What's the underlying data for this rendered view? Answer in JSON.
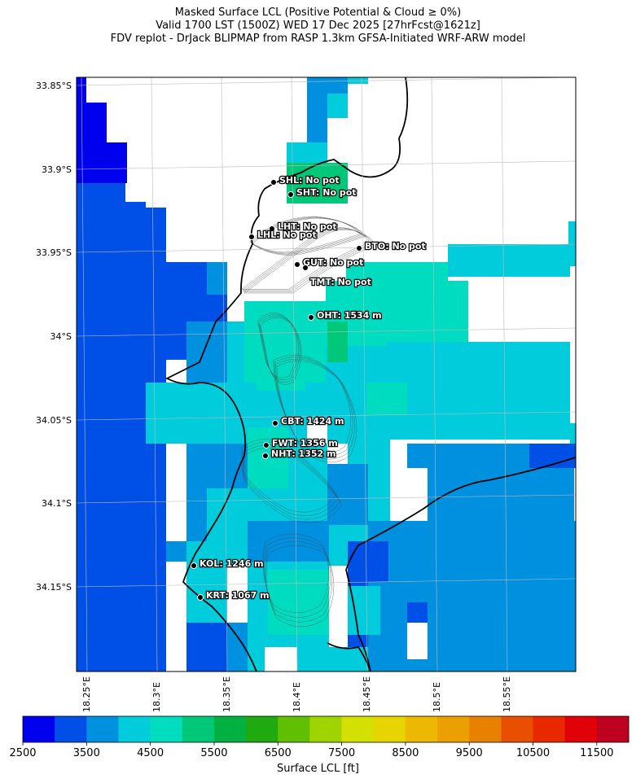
{
  "title": {
    "line1": "Masked Surface LCL (Positive Potential & Cloud ≥ 0%)",
    "line2": "Valid 1700 LST (1500Z) WED 17 Dec 2025 [27hrFcst@1621z]",
    "line3": "FDV replot - DrJack BLIPMAP from RASP 1.3km GFSA-Initiated WRF-ARW model"
  },
  "map": {
    "lat_labels": [
      "33.85°S",
      "33.9°S",
      "33.95°S",
      "34°S",
      "34.05°S",
      "34.1°S",
      "34.15°S"
    ],
    "lon_labels": [
      "18.25°E",
      "18.3°E",
      "18.35°E",
      "18.4°E",
      "18.45°E",
      "18.5°E",
      "18.55°E"
    ],
    "stations": [
      {
        "id": "SHL",
        "label": "SHL: No pot"
      },
      {
        "id": "SHT",
        "label": "SHT: No pot"
      },
      {
        "id": "LHT",
        "label": "LHT: No pot"
      },
      {
        "id": "LHL",
        "label": "LHL: No pot"
      },
      {
        "id": "BTO",
        "label": "BTO: No pot"
      },
      {
        "id": "GUT",
        "label": "GUT: No pot"
      },
      {
        "id": "TMT",
        "label": "TMT: No pot"
      },
      {
        "id": "OHT",
        "label": "OHT: 1534 m"
      },
      {
        "id": "CBT",
        "label": "CBT: 1424 m"
      },
      {
        "id": "FWT",
        "label": "FWT: 1356 m"
      },
      {
        "id": "NHT",
        "label": "NHT: 1352 m"
      },
      {
        "id": "KOL",
        "label": "KOL: 1246 m"
      },
      {
        "id": "KRT",
        "label": "KRT: 1067 m"
      }
    ]
  },
  "colorbar": {
    "label": "Surface LCL [ft]",
    "tick_labels": [
      "2500",
      "3500",
      "4500",
      "5500",
      "6500",
      "7500",
      "8500",
      "9500",
      "10500",
      "11500"
    ],
    "min": 2500,
    "max": 12000,
    "step": 500,
    "colors": [
      "#0000ee",
      "#0050e8",
      "#0090e0",
      "#00ccdc",
      "#00dcc0",
      "#00c878",
      "#00b040",
      "#20aa10",
      "#60c000",
      "#a0d400",
      "#d4e000",
      "#e8d400",
      "#ecb800",
      "#eca000",
      "#e88000",
      "#e85000",
      "#e82800",
      "#e00008",
      "#c00020"
    ]
  }
}
